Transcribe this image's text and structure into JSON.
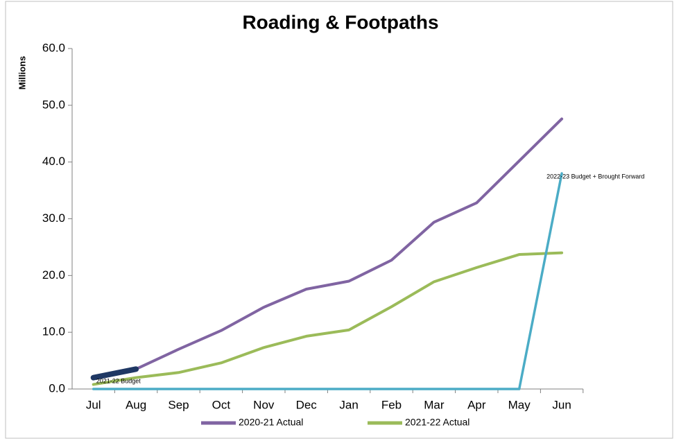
{
  "chart_data": {
    "type": "line",
    "title": "Roading & Footpaths",
    "y_label": "Millions",
    "categories": [
      "Jul",
      "Aug",
      "Sep",
      "Oct",
      "Nov",
      "Dec",
      "Jan",
      "Feb",
      "Mar",
      "Apr",
      "May",
      "Jun"
    ],
    "series": [
      {
        "name": "2020-21 Actual",
        "color": "#8064a2",
        "values": [
          2.0,
          3.5,
          7.0,
          10.3,
          14.4,
          17.6,
          19.0,
          22.7,
          29.4,
          32.8,
          40.2,
          47.6
        ]
      },
      {
        "name": "2021-22 Actual",
        "color": "#9bbb59",
        "values": [
          0.8,
          2.0,
          2.9,
          4.6,
          7.3,
          9.3,
          10.4,
          14.5,
          18.9,
          21.4,
          23.7,
          24.0
        ]
      },
      {
        "color": "#4bacc6",
        "values": [
          0,
          0,
          0,
          0,
          0,
          0,
          0,
          0,
          0,
          0,
          0,
          38.0
        ]
      },
      {
        "color": "#1f3864",
        "values": [
          2.0,
          3.5,
          null,
          null,
          null,
          null,
          null,
          null,
          null,
          null,
          null,
          null
        ]
      }
    ],
    "annotations": [
      "2021-22 Budget",
      "2022-23 Budget + Brought Forward"
    ],
    "ylim": [
      0,
      60
    ],
    "yticks": [
      {
        "value": 0,
        "label": "0.0"
      },
      {
        "value": 10,
        "label": "10.0"
      },
      {
        "value": 20,
        "label": "20.0"
      },
      {
        "value": 30,
        "label": "30.0"
      },
      {
        "value": 40,
        "label": "40.0"
      },
      {
        "value": 50,
        "label": "50.0"
      },
      {
        "value": 60,
        "label": "60.0"
      }
    ],
    "grid": false
  }
}
